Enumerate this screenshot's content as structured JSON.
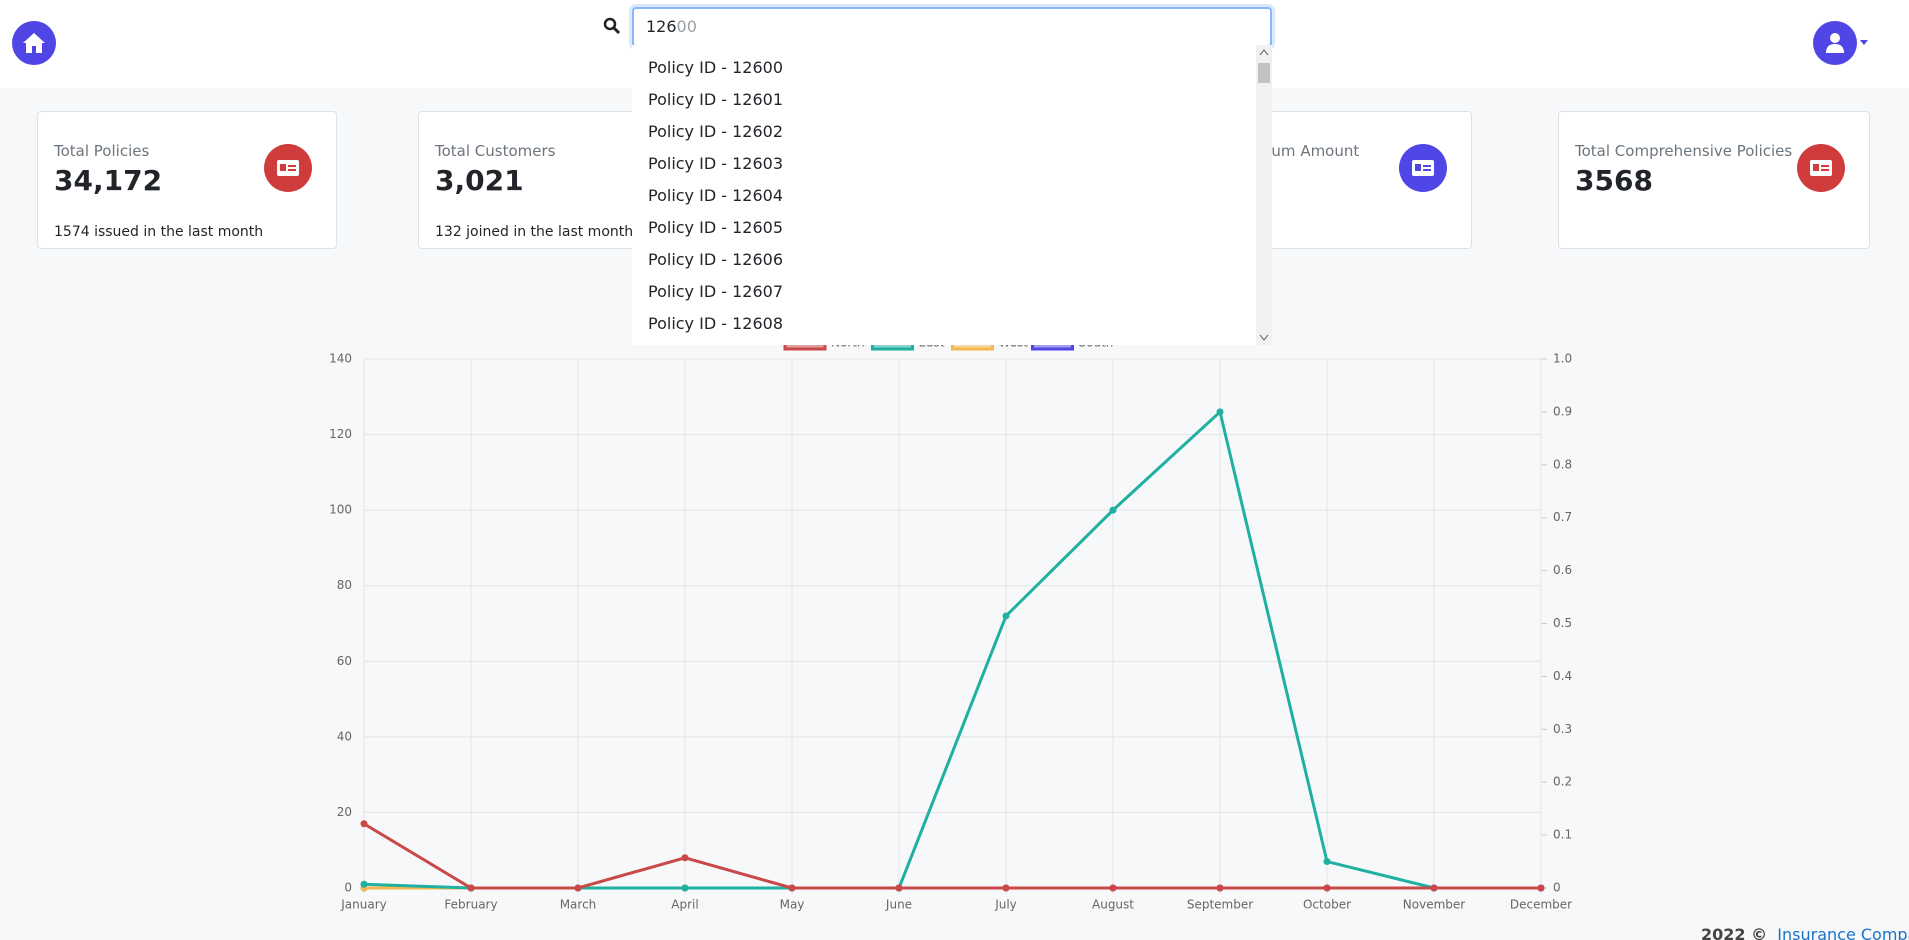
{
  "search": {
    "typed": "126",
    "completion": "00"
  },
  "dropdown": [
    "Policy ID - 12600",
    "Policy ID - 12601",
    "Policy ID - 12602",
    "Policy ID - 12603",
    "Policy ID - 12604",
    "Policy ID - 12605",
    "Policy ID - 12606",
    "Policy ID - 12607",
    "Policy ID - 12608"
  ],
  "cards": [
    {
      "label": "Total Policies",
      "value": "34,172",
      "sub": "1574 issued in the last month"
    },
    {
      "label": "Total Customers",
      "value": "3,021",
      "sub": "132 joined in the last month"
    },
    {
      "label": "Total Premium Amount"
    },
    {
      "label": "Total Comprehensive Policies",
      "value": "3568"
    }
  ],
  "chart_data": {
    "type": "line",
    "categories": [
      "January",
      "February",
      "March",
      "April",
      "May",
      "June",
      "July",
      "August",
      "September",
      "October",
      "November",
      "December"
    ],
    "series": [
      {
        "name": "North",
        "color": "#c94848",
        "values": [
          17,
          0,
          0,
          8,
          0,
          0,
          0,
          0,
          0,
          0,
          0,
          0
        ]
      },
      {
        "name": "East",
        "color": "#1fb0a2",
        "values": [
          1,
          0,
          0,
          0,
          0,
          0,
          72,
          100,
          126,
          7,
          0,
          0
        ]
      },
      {
        "name": "West",
        "color": "#f6b84a",
        "values": [
          0,
          0,
          0,
          0,
          0,
          0,
          0,
          0,
          0,
          0,
          0,
          0
        ]
      },
      {
        "name": "South",
        "color": "#5046e5",
        "values": [
          0,
          0,
          0,
          0,
          0,
          0,
          0,
          0,
          0,
          0,
          0,
          0
        ]
      }
    ],
    "ylim": [
      0,
      140
    ],
    "yticks": [
      0,
      20,
      40,
      60,
      80,
      100,
      120,
      140
    ],
    "y2lim": [
      0,
      1
    ],
    "y2ticks": [
      0,
      0.1,
      0.2,
      0.3,
      0.4,
      0.5,
      0.6,
      0.7,
      0.8,
      0.9,
      {
        "value": 1,
        "label": "1.0"
      }
    ],
    "grid": true,
    "legend": "top"
  },
  "footer": {
    "copyright": "2022 ©",
    "company": "Insurance Company"
  }
}
